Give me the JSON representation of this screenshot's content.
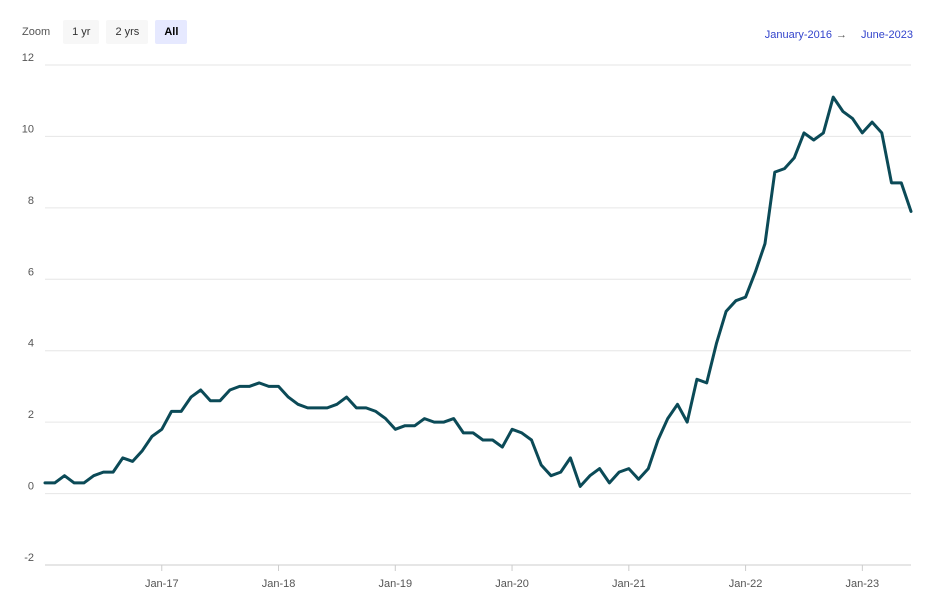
{
  "toolbar": {
    "zoom_label": "Zoom",
    "buttons": [
      {
        "label": "1 yr",
        "active": false
      },
      {
        "label": "2 yrs",
        "active": false
      },
      {
        "label": "All",
        "active": true
      }
    ]
  },
  "range": {
    "from": "January-2016",
    "arrow": "→",
    "to": "June-2023"
  },
  "colors": {
    "line": "#0b4a57",
    "grid": "#e6e6e6",
    "active_button": "#e6e9ff",
    "range_link": "#3344cc"
  },
  "chart_data": {
    "type": "line",
    "title": "",
    "xlabel": "",
    "ylabel": "",
    "ylim": [
      -2,
      12
    ],
    "yticks": [
      -2,
      0,
      2,
      4,
      6,
      8,
      10,
      12
    ],
    "xticks": [
      "Jan-17",
      "Jan-18",
      "Jan-19",
      "Jan-20",
      "Jan-21",
      "Jan-22",
      "Jan-23"
    ],
    "grid": true,
    "x_start": "2016-01",
    "x_end": "2023-06",
    "series": [
      {
        "values": [
          0.3,
          0.3,
          0.5,
          0.3,
          0.3,
          0.5,
          0.6,
          0.6,
          1.0,
          0.9,
          1.2,
          1.6,
          1.8,
          2.3,
          2.3,
          2.7,
          2.9,
          2.6,
          2.6,
          2.9,
          3.0,
          3.0,
          3.1,
          3.0,
          3.0,
          2.7,
          2.5,
          2.4,
          2.4,
          2.4,
          2.5,
          2.7,
          2.4,
          2.4,
          2.3,
          2.1,
          1.8,
          1.9,
          1.9,
          2.1,
          2.0,
          2.0,
          2.1,
          1.7,
          1.7,
          1.5,
          1.5,
          1.3,
          1.8,
          1.7,
          1.5,
          0.8,
          0.5,
          0.6,
          1.0,
          0.2,
          0.5,
          0.7,
          0.3,
          0.6,
          0.7,
          0.4,
          0.7,
          1.5,
          2.1,
          2.5,
          2.0,
          3.2,
          3.1,
          4.2,
          5.1,
          5.4,
          5.5,
          6.2,
          7.0,
          9.0,
          9.1,
          9.4,
          10.1,
          9.9,
          10.1,
          11.1,
          10.7,
          10.5,
          10.1,
          10.4,
          10.1,
          8.7,
          8.7,
          7.9
        ]
      }
    ]
  }
}
